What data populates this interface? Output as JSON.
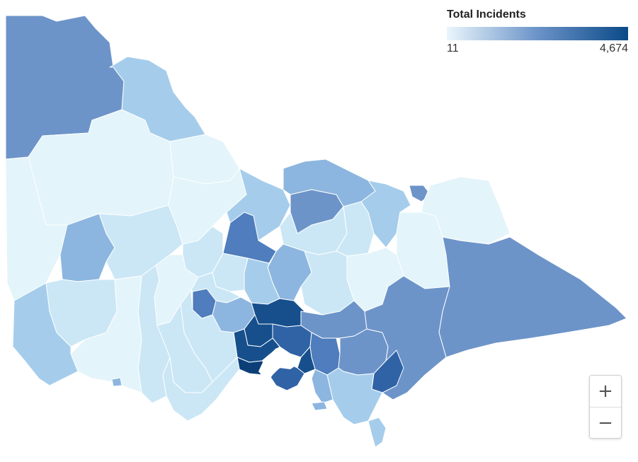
{
  "legend": {
    "title": "Total Incidents",
    "min_label": "11",
    "max_label": "4,674",
    "gradient_start": "#eaf6fc",
    "gradient_mid": "#6b93c8",
    "gradient_end": "#0a4a87"
  },
  "zoom": {
    "in_label": "+",
    "out_label": "−"
  },
  "map": {
    "background": "#ffffff",
    "region_stroke": "#ffffff",
    "shade_scale": {
      "s1": "#e3f4fa",
      "s2": "#cbe7f6",
      "s3": "#a5cdeb",
      "s4": "#8cb6df",
      "s5": "#6d94c9",
      "s6": "#4f7dbd",
      "s7": "#2f63a6",
      "s8": "#164f8c",
      "s9": "#0c3f78"
    }
  }
}
